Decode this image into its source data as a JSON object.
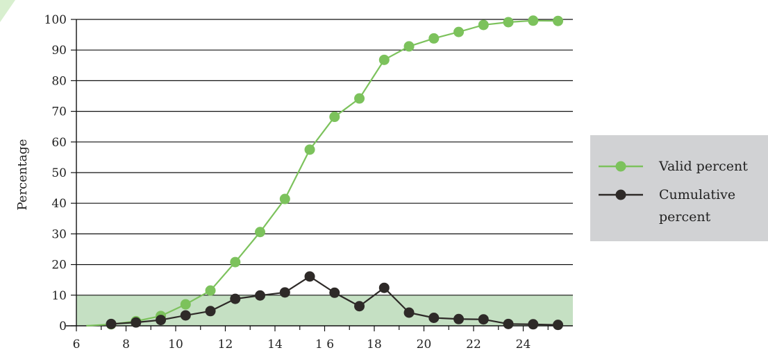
{
  "chart_data": {
    "type": "line",
    "title": "",
    "xlabel": "",
    "ylabel": "Percentage",
    "xlim": [
      6,
      26
    ],
    "ylim": [
      0,
      100
    ],
    "x_ticks": [
      6,
      8,
      10,
      12,
      14,
      16,
      18,
      20,
      22,
      24
    ],
    "x_tick_labels": [
      "6",
      "8",
      "10",
      "12",
      "14",
      "1 6",
      "18",
      "20",
      "22",
      "24"
    ],
    "y_ticks": [
      0,
      10,
      20,
      30,
      40,
      50,
      60,
      70,
      80,
      90,
      100
    ],
    "y_tick_labels": [
      "0",
      "10",
      "20",
      "30",
      "40",
      "50",
      "60",
      "70",
      "80",
      "90",
      "100"
    ],
    "grid": true,
    "shaded_band": {
      "y_from": 0,
      "y_to": 10,
      "color": "#c5e0c3"
    },
    "legend_placement": "right",
    "series": [
      {
        "name": "Valid percent",
        "color": "#7cc25c",
        "line_start": {
          "x": 6.4,
          "y": 0
        },
        "points": [
          {
            "x": 7.4,
            "y": 0.5
          },
          {
            "x": 8.4,
            "y": 1.5
          },
          {
            "x": 9.4,
            "y": 3.2
          },
          {
            "x": 10.4,
            "y": 7.0
          },
          {
            "x": 11.4,
            "y": 11.5
          },
          {
            "x": 12.4,
            "y": 20.8
          },
          {
            "x": 13.4,
            "y": 30.6
          },
          {
            "x": 14.4,
            "y": 41.4
          },
          {
            "x": 15.4,
            "y": 57.5
          },
          {
            "x": 16.4,
            "y": 68.2
          },
          {
            "x": 17.4,
            "y": 74.2
          },
          {
            "x": 18.4,
            "y": 86.8
          },
          {
            "x": 19.4,
            "y": 91.2
          },
          {
            "x": 20.4,
            "y": 93.8
          },
          {
            "x": 21.4,
            "y": 95.9
          },
          {
            "x": 22.4,
            "y": 98.2
          },
          {
            "x": 23.4,
            "y": 99.1
          },
          {
            "x": 24.4,
            "y": 99.6
          },
          {
            "x": 25.4,
            "y": 99.5
          }
        ]
      },
      {
        "name": "Cumulative percent",
        "color": "#2e2a28",
        "points": [
          {
            "x": 7.4,
            "y": 0.6
          },
          {
            "x": 8.4,
            "y": 1.1
          },
          {
            "x": 9.4,
            "y": 1.9
          },
          {
            "x": 10.4,
            "y": 3.4
          },
          {
            "x": 11.4,
            "y": 4.8
          },
          {
            "x": 12.4,
            "y": 8.8
          },
          {
            "x": 13.4,
            "y": 9.9
          },
          {
            "x": 14.4,
            "y": 10.9
          },
          {
            "x": 15.4,
            "y": 16.1
          },
          {
            "x": 16.4,
            "y": 10.8
          },
          {
            "x": 17.4,
            "y": 6.4
          },
          {
            "x": 18.4,
            "y": 12.4
          },
          {
            "x": 19.4,
            "y": 4.3
          },
          {
            "x": 20.4,
            "y": 2.6
          },
          {
            "x": 21.4,
            "y": 2.2
          },
          {
            "x": 22.4,
            "y": 2.1
          },
          {
            "x": 23.4,
            "y": 0.6
          },
          {
            "x": 24.4,
            "y": 0.5
          },
          {
            "x": 25.4,
            "y": 0.3
          }
        ]
      }
    ],
    "legend": {
      "background": "#d1d2d4",
      "entries": [
        {
          "lines": [
            "Valid percent"
          ]
        },
        {
          "lines": [
            "Cumulative",
            "percent"
          ]
        }
      ]
    },
    "colors": {
      "gridline": "#111111",
      "axis": "#111111"
    }
  }
}
